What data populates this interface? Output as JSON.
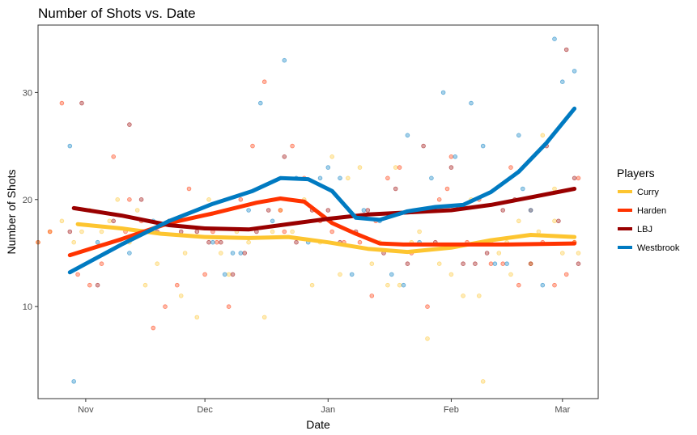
{
  "chart_data": {
    "type": "scatter",
    "title": "Number of Shots vs. Date",
    "xlabel": "Date",
    "ylabel": "Number of Shots",
    "x_range": [
      "2017-10-20",
      "2018-03-10"
    ],
    "ylim": [
      1.4,
      36.3
    ],
    "x_ticks": [
      {
        "date": "2017-11-01",
        "label": "Nov"
      },
      {
        "date": "2017-12-01",
        "label": "Dec"
      },
      {
        "date": "2018-01-01",
        "label": "Jan"
      },
      {
        "date": "2018-02-01",
        "label": "Feb"
      },
      {
        "date": "2018-03-01",
        "label": "Mar"
      }
    ],
    "y_ticks": [
      10,
      20,
      30
    ],
    "grid": false,
    "legend": {
      "title": "Players",
      "position": "right"
    },
    "series": [
      {
        "name": "Curry",
        "color": "#FDC530",
        "points": [
          [
            "2017-10-20",
            16
          ],
          [
            "2017-10-23",
            17
          ],
          [
            "2017-10-26",
            18
          ],
          [
            "2017-10-29",
            16
          ],
          [
            "2017-11-02",
            19
          ],
          [
            "2017-11-05",
            17
          ],
          [
            "2017-11-09",
            20
          ],
          [
            "2017-11-12",
            16
          ],
          [
            "2017-11-16",
            12
          ],
          [
            "2017-11-19",
            14
          ],
          [
            "2017-11-22",
            18
          ],
          [
            "2017-11-25",
            11
          ],
          [
            "2017-11-29",
            9
          ],
          [
            "2017-12-02",
            20
          ],
          [
            "2017-12-05",
            15
          ],
          [
            "2017-12-09",
            17
          ],
          [
            "2017-12-12",
            16
          ],
          [
            "2017-12-16",
            9
          ],
          [
            "2017-12-20",
            19
          ],
          [
            "2017-12-23",
            17
          ],
          [
            "2017-12-26",
            20
          ],
          [
            "2017-12-30",
            16
          ],
          [
            "2018-01-02",
            24
          ],
          [
            "2018-01-06",
            22
          ],
          [
            "2018-01-09",
            23
          ],
          [
            "2018-01-12",
            14
          ],
          [
            "2018-01-16",
            12
          ],
          [
            "2018-01-19",
            12
          ],
          [
            "2018-01-22",
            16
          ],
          [
            "2018-01-26",
            7
          ],
          [
            "2018-01-29",
            14
          ],
          [
            "2018-02-01",
            13
          ],
          [
            "2018-02-04",
            11
          ],
          [
            "2018-02-08",
            11
          ],
          [
            "2018-02-11",
            16
          ],
          [
            "2018-02-15",
            16
          ],
          [
            "2018-02-18",
            18
          ],
          [
            "2018-02-21",
            14
          ],
          [
            "2018-02-24",
            26
          ],
          [
            "2018-02-27",
            18
          ],
          [
            "2018-03-01",
            15
          ],
          [
            "2018-03-04",
            16
          ],
          [
            "2018-03-05",
            15
          ],
          [
            "2018-02-27",
            21
          ],
          [
            "2018-02-13",
            15
          ],
          [
            "2018-02-06",
            20
          ],
          [
            "2018-01-24",
            17
          ],
          [
            "2018-01-14",
            16
          ],
          [
            "2018-01-04",
            13
          ],
          [
            "2017-12-18",
            17
          ],
          [
            "2017-12-07",
            13
          ],
          [
            "2017-11-26",
            15
          ],
          [
            "2017-11-14",
            19
          ],
          [
            "2017-11-07",
            18
          ],
          [
            "2017-10-31",
            17
          ],
          [
            "2018-02-09",
            3
          ],
          [
            "2018-02-16",
            13
          ],
          [
            "2018-02-23",
            17
          ],
          [
            "2017-12-28",
            12
          ],
          [
            "2018-01-18",
            23
          ]
        ],
        "trend": [
          [
            "2017-10-30",
            17.7
          ],
          [
            "2017-11-10",
            17.3
          ],
          [
            "2017-11-20",
            16.8
          ],
          [
            "2017-12-01",
            16.5
          ],
          [
            "2017-12-12",
            16.4
          ],
          [
            "2017-12-22",
            16.5
          ],
          [
            "2018-01-01",
            16.0
          ],
          [
            "2018-01-11",
            15.4
          ],
          [
            "2018-01-21",
            15.1
          ],
          [
            "2018-02-01",
            15.5
          ],
          [
            "2018-02-11",
            16.2
          ],
          [
            "2018-02-21",
            16.7
          ],
          [
            "2018-03-04",
            16.5
          ]
        ]
      },
      {
        "name": "Harden",
        "color": "#FF3300",
        "points": [
          [
            "2017-10-20",
            16
          ],
          [
            "2017-10-23",
            17
          ],
          [
            "2017-10-26",
            29
          ],
          [
            "2017-10-30",
            13
          ],
          [
            "2017-11-02",
            12
          ],
          [
            "2017-11-05",
            14
          ],
          [
            "2017-11-08",
            24
          ],
          [
            "2017-11-11",
            17
          ],
          [
            "2017-11-15",
            18
          ],
          [
            "2017-11-18",
            8
          ],
          [
            "2017-11-21",
            10
          ],
          [
            "2017-11-24",
            12
          ],
          [
            "2017-11-27",
            21
          ],
          [
            "2017-12-01",
            13
          ],
          [
            "2017-12-04",
            16
          ],
          [
            "2017-12-07",
            10
          ],
          [
            "2017-12-10",
            20
          ],
          [
            "2017-12-13",
            25
          ],
          [
            "2017-12-16",
            31
          ],
          [
            "2017-12-20",
            19
          ],
          [
            "2017-12-23",
            25
          ],
          [
            "2017-12-26",
            22
          ],
          [
            "2017-12-30",
            18
          ],
          [
            "2018-01-02",
            17
          ],
          [
            "2018-01-05",
            16
          ],
          [
            "2018-01-09",
            16
          ],
          [
            "2018-01-12",
            11
          ],
          [
            "2018-01-16",
            22
          ],
          [
            "2018-01-19",
            23
          ],
          [
            "2018-01-22",
            15
          ],
          [
            "2018-01-26",
            10
          ],
          [
            "2018-01-29",
            20
          ],
          [
            "2018-02-01",
            24
          ],
          [
            "2018-02-05",
            16
          ],
          [
            "2018-02-08",
            20
          ],
          [
            "2018-02-11",
            14
          ],
          [
            "2018-02-14",
            14
          ],
          [
            "2018-02-18",
            12
          ],
          [
            "2018-02-21",
            19
          ],
          [
            "2018-02-24",
            16
          ],
          [
            "2018-02-27",
            12
          ],
          [
            "2018-03-02",
            13
          ],
          [
            "2018-03-04",
            16
          ],
          [
            "2018-03-05",
            22
          ],
          [
            "2018-02-16",
            23
          ],
          [
            "2018-01-31",
            21
          ],
          [
            "2018-01-13",
            18
          ],
          [
            "2017-12-21",
            17
          ],
          [
            "2017-12-03",
            17
          ],
          [
            "2017-11-12",
            20
          ]
        ],
        "trend": [
          [
            "2017-10-28",
            14.8
          ],
          [
            "2017-11-10",
            16.3
          ],
          [
            "2017-11-22",
            17.8
          ],
          [
            "2017-12-03",
            18.7
          ],
          [
            "2017-12-14",
            19.7
          ],
          [
            "2017-12-20",
            20.1
          ],
          [
            "2017-12-26",
            19.8
          ],
          [
            "2018-01-02",
            17.8
          ],
          [
            "2018-01-08",
            16.8
          ],
          [
            "2018-01-14",
            15.9
          ],
          [
            "2018-01-20",
            15.8
          ],
          [
            "2018-02-01",
            15.8
          ],
          [
            "2018-02-15",
            15.8
          ],
          [
            "2018-03-04",
            15.9
          ]
        ]
      },
      {
        "name": "LBJ",
        "color": "#990000",
        "points": [
          [
            "2017-10-28",
            17
          ],
          [
            "2017-10-31",
            29
          ],
          [
            "2017-11-04",
            12
          ],
          [
            "2017-11-08",
            18
          ],
          [
            "2017-11-12",
            27
          ],
          [
            "2017-11-15",
            20
          ],
          [
            "2017-11-19",
            17
          ],
          [
            "2017-11-22",
            18
          ],
          [
            "2017-11-25",
            17
          ],
          [
            "2017-11-29",
            17
          ],
          [
            "2017-12-02",
            16
          ],
          [
            "2017-12-05",
            16
          ],
          [
            "2017-12-08",
            13
          ],
          [
            "2017-12-11",
            15
          ],
          [
            "2017-12-14",
            17
          ],
          [
            "2017-12-17",
            19
          ],
          [
            "2017-12-21",
            24
          ],
          [
            "2017-12-24",
            16
          ],
          [
            "2017-12-28",
            19
          ],
          [
            "2018-01-01",
            19
          ],
          [
            "2018-01-04",
            16
          ],
          [
            "2018-01-08",
            17
          ],
          [
            "2018-01-11",
            19
          ],
          [
            "2018-01-15",
            15
          ],
          [
            "2018-01-18",
            21
          ],
          [
            "2018-01-21",
            14
          ],
          [
            "2018-01-25",
            25
          ],
          [
            "2018-01-28",
            16
          ],
          [
            "2018-02-01",
            23
          ],
          [
            "2018-02-04",
            14
          ],
          [
            "2018-02-07",
            14
          ],
          [
            "2018-02-10",
            15
          ],
          [
            "2018-02-14",
            19
          ],
          [
            "2018-02-17",
            20
          ],
          [
            "2018-02-21",
            14
          ],
          [
            "2018-02-25",
            25
          ],
          [
            "2018-02-28",
            18
          ],
          [
            "2018-03-02",
            34
          ],
          [
            "2018-03-04",
            22
          ],
          [
            "2018-03-05",
            14
          ]
        ],
        "trend": [
          [
            "2017-10-29",
            19.2
          ],
          [
            "2017-11-10",
            18.5
          ],
          [
            "2017-11-22",
            17.6
          ],
          [
            "2017-12-01",
            17.3
          ],
          [
            "2017-12-12",
            17.2
          ],
          [
            "2017-12-24",
            17.8
          ],
          [
            "2018-01-01",
            18.2
          ],
          [
            "2018-01-11",
            18.6
          ],
          [
            "2018-01-21",
            18.8
          ],
          [
            "2018-02-01",
            19.0
          ],
          [
            "2018-02-11",
            19.5
          ],
          [
            "2018-02-21",
            20.2
          ],
          [
            "2018-03-04",
            21.0
          ]
        ]
      },
      {
        "name": "Westbrook",
        "color": "#007AC1",
        "points": [
          [
            "2017-10-28",
            25
          ],
          [
            "2017-10-29",
            3
          ],
          [
            "2017-11-04",
            16
          ],
          [
            "2017-11-12",
            15
          ],
          [
            "2017-11-18",
            18
          ],
          [
            "2017-11-23",
            18
          ],
          [
            "2017-12-03",
            16
          ],
          [
            "2017-12-06",
            13
          ],
          [
            "2017-12-10",
            15
          ],
          [
            "2017-12-12",
            19
          ],
          [
            "2017-12-15",
            29
          ],
          [
            "2017-12-18",
            18
          ],
          [
            "2017-12-21",
            33
          ],
          [
            "2017-12-24",
            22
          ],
          [
            "2017-12-27",
            16
          ],
          [
            "2017-12-30",
            22
          ],
          [
            "2018-01-01",
            23
          ],
          [
            "2018-01-04",
            22
          ],
          [
            "2018-01-07",
            13
          ],
          [
            "2018-01-10",
            19
          ],
          [
            "2018-01-14",
            18
          ],
          [
            "2018-01-17",
            13
          ],
          [
            "2018-01-21",
            26
          ],
          [
            "2018-01-24",
            16
          ],
          [
            "2018-01-27",
            22
          ],
          [
            "2018-01-30",
            30
          ],
          [
            "2018-02-02",
            24
          ],
          [
            "2018-02-06",
            29
          ],
          [
            "2018-02-09",
            25
          ],
          [
            "2018-02-12",
            14
          ],
          [
            "2018-02-15",
            14
          ],
          [
            "2018-02-18",
            26
          ],
          [
            "2018-02-21",
            19
          ],
          [
            "2018-02-24",
            12
          ],
          [
            "2018-02-27",
            35
          ],
          [
            "2018-03-01",
            31
          ],
          [
            "2018-03-04",
            32
          ],
          [
            "2018-02-19",
            21
          ],
          [
            "2018-01-20",
            12
          ],
          [
            "2017-12-08",
            15
          ]
        ],
        "trend": [
          [
            "2017-10-28",
            13.2
          ],
          [
            "2017-11-10",
            15.8
          ],
          [
            "2017-11-22",
            18.0
          ],
          [
            "2017-12-03",
            19.6
          ],
          [
            "2017-12-13",
            20.8
          ],
          [
            "2017-12-20",
            22.0
          ],
          [
            "2017-12-27",
            21.9
          ],
          [
            "2018-01-02",
            20.8
          ],
          [
            "2018-01-08",
            18.3
          ],
          [
            "2018-01-14",
            18.1
          ],
          [
            "2018-01-21",
            18.9
          ],
          [
            "2018-01-28",
            19.3
          ],
          [
            "2018-02-04",
            19.5
          ],
          [
            "2018-02-11",
            20.7
          ],
          [
            "2018-02-18",
            22.6
          ],
          [
            "2018-02-25",
            25.3
          ],
          [
            "2018-03-04",
            28.5
          ]
        ]
      }
    ]
  }
}
